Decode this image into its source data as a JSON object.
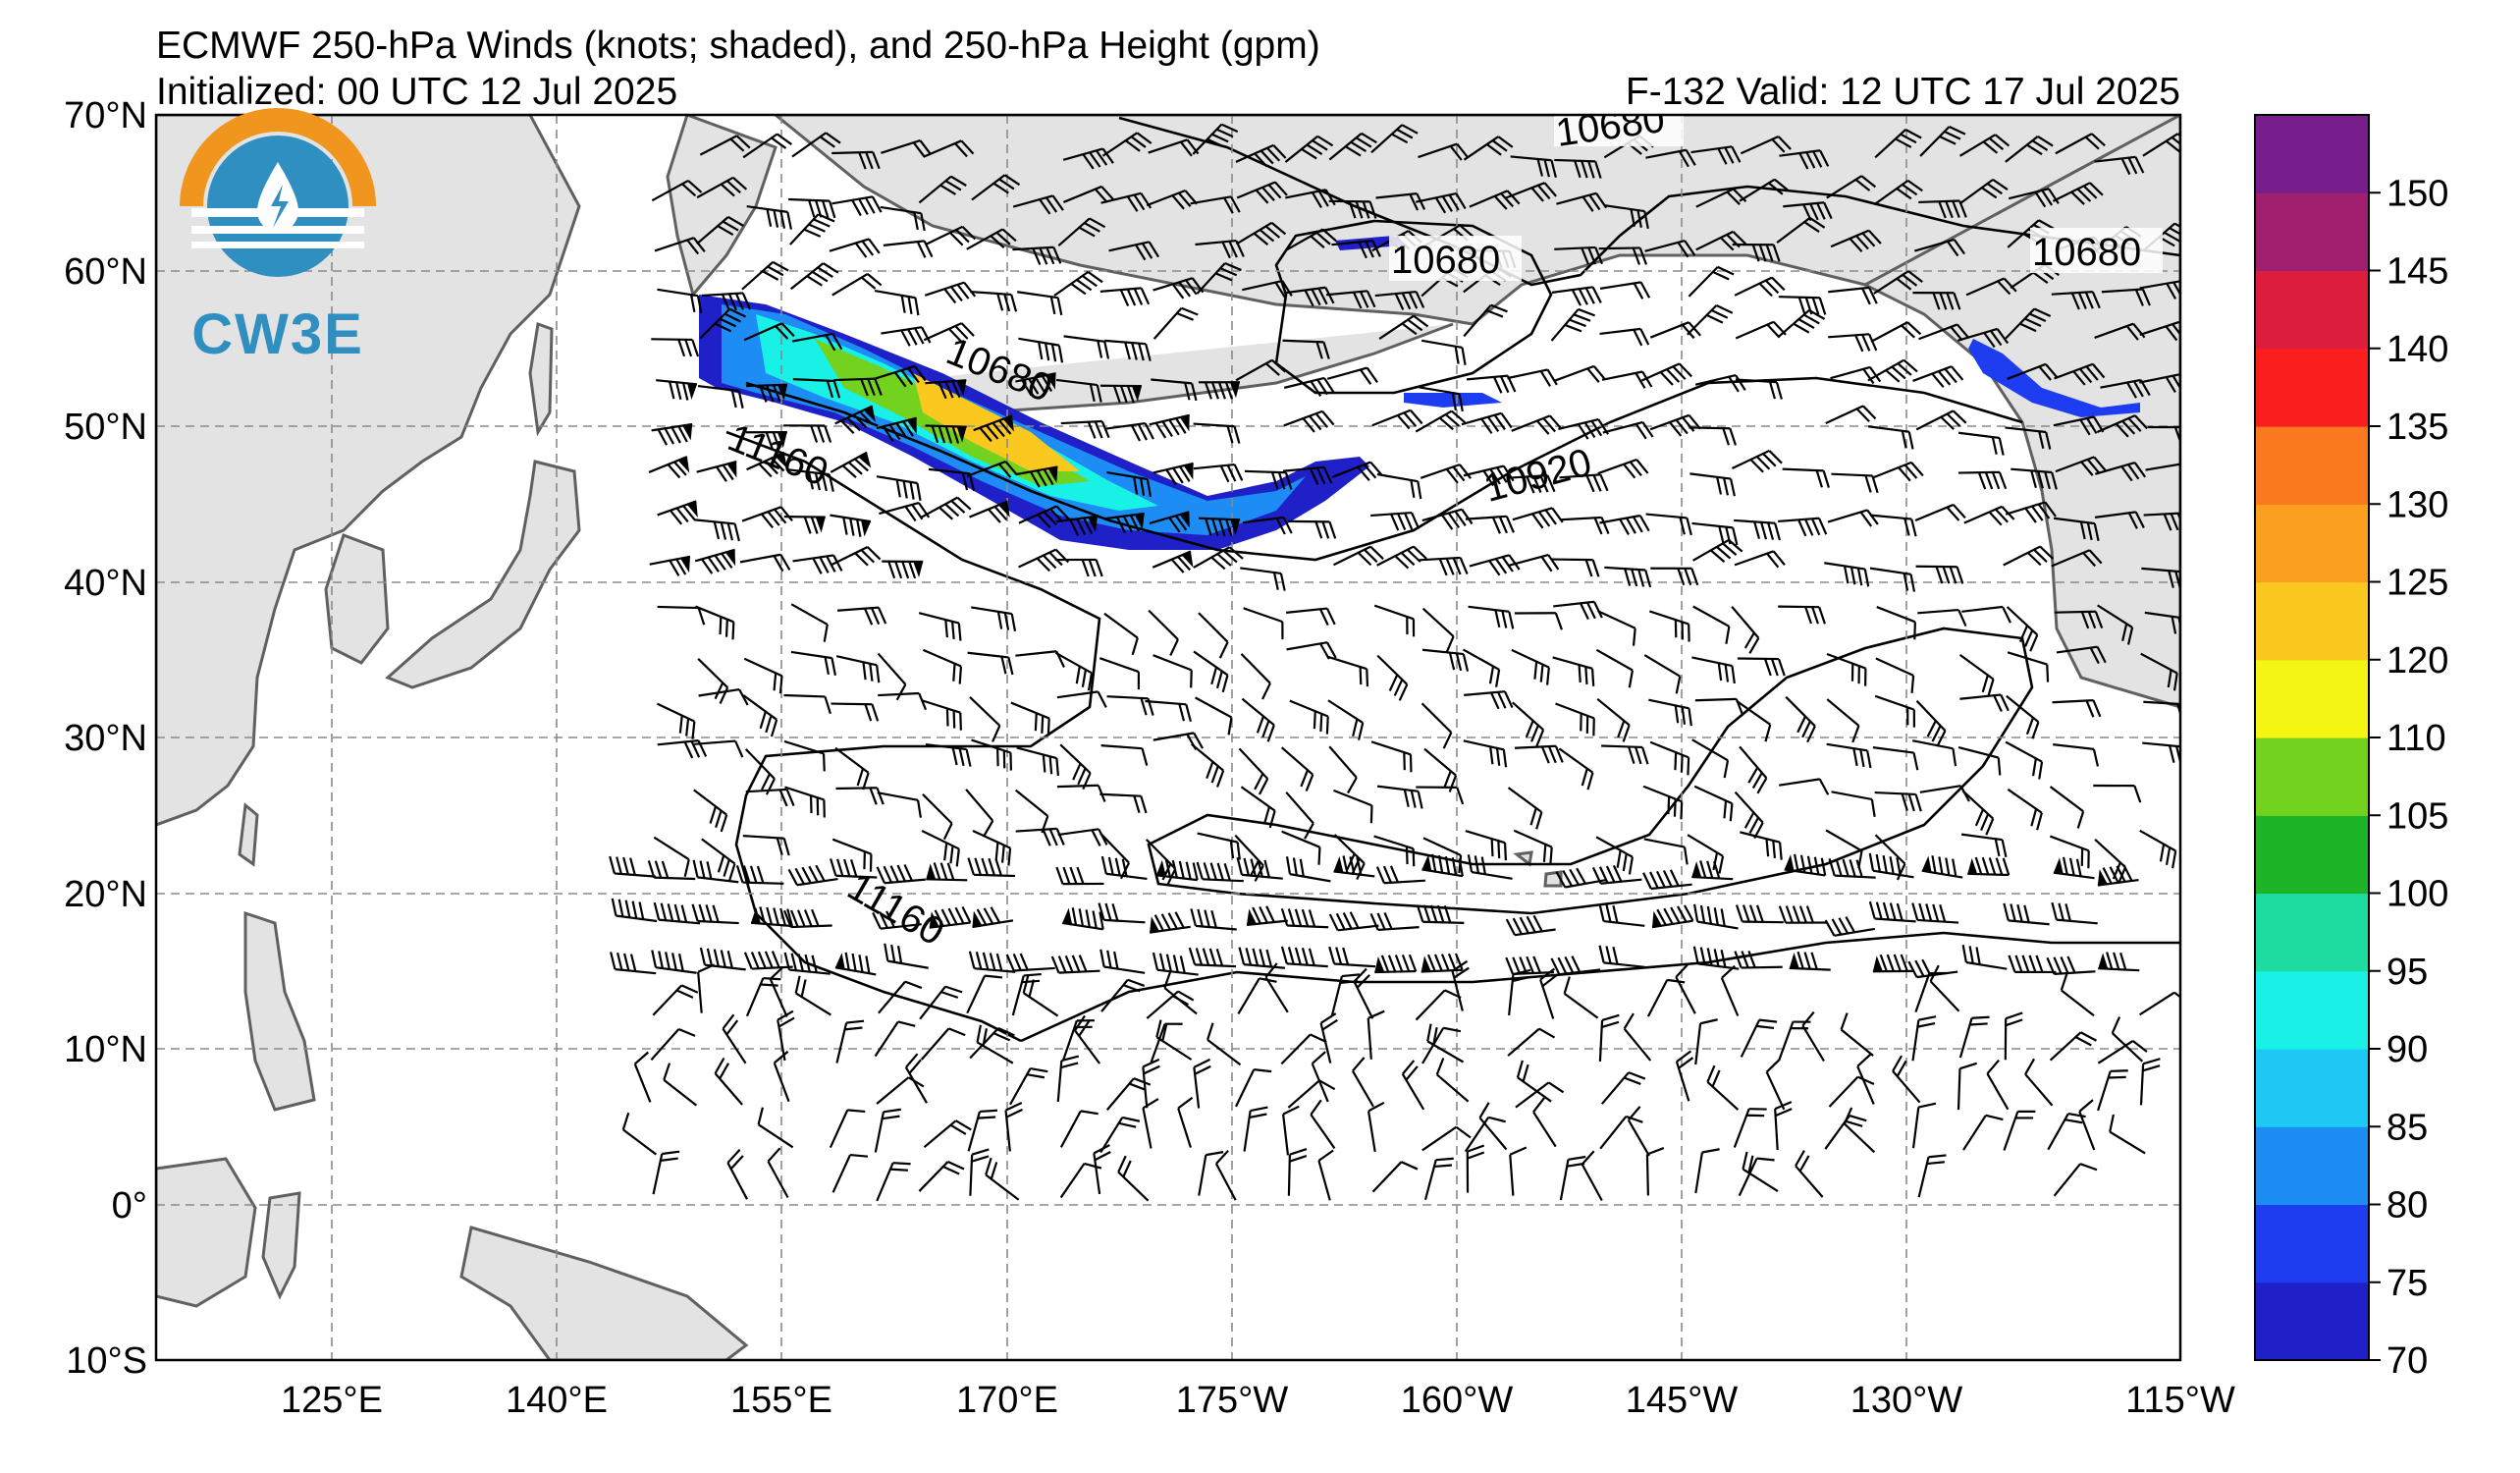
{
  "header": {
    "title": "ECMWF 250-hPa Winds (knots; shaded), and 250-hPa Height (gpm)",
    "initialized": "Initialized: 00 UTC 12 Jul 2025",
    "valid": "F-132  Valid: 12 UTC 17 Jul 2025"
  },
  "logo": {
    "text": "CW3E",
    "colors": {
      "orange": "#f0961e",
      "blue": "#2e8fc0"
    }
  },
  "map": {
    "projection": "equirectangular",
    "lon_range": [
      110,
      245
    ],
    "lat_range": [
      -10,
      70
    ],
    "lat_ticks": [
      "70°N",
      "60°N",
      "50°N",
      "40°N",
      "30°N",
      "20°N",
      "10°N",
      "0°",
      "10°S"
    ],
    "lon_ticks": [
      "125°E",
      "140°E",
      "155°E",
      "170°E",
      "175°W",
      "160°W",
      "145°W",
      "130°W",
      "115°W"
    ],
    "land_color": "#e3e3e3",
    "coast_color": "#606060",
    "gridlines": true
  },
  "contours": {
    "variable": "250-hPa Height (gpm)",
    "labels": [
      "10680",
      "10680",
      "10680",
      "10680",
      "10920",
      "11160",
      "11160"
    ]
  },
  "colorbar": {
    "variable": "250-hPa Winds (knots)",
    "ticks": [
      "70",
      "75",
      "80",
      "85",
      "90",
      "95",
      "100",
      "105",
      "110",
      "120",
      "125",
      "130",
      "135",
      "140",
      "145",
      "150"
    ],
    "colors": [
      "#1f20c8",
      "#1e3cf0",
      "#1e8cf5",
      "#1ec8f5",
      "#19f0e6",
      "#1edca0",
      "#1eb428",
      "#73d21e",
      "#f5f514",
      "#fac81e",
      "#faa01e",
      "#fa781e",
      "#fa1e1e",
      "#dc1e3c",
      "#a01e6e",
      "#781e8c"
    ]
  }
}
